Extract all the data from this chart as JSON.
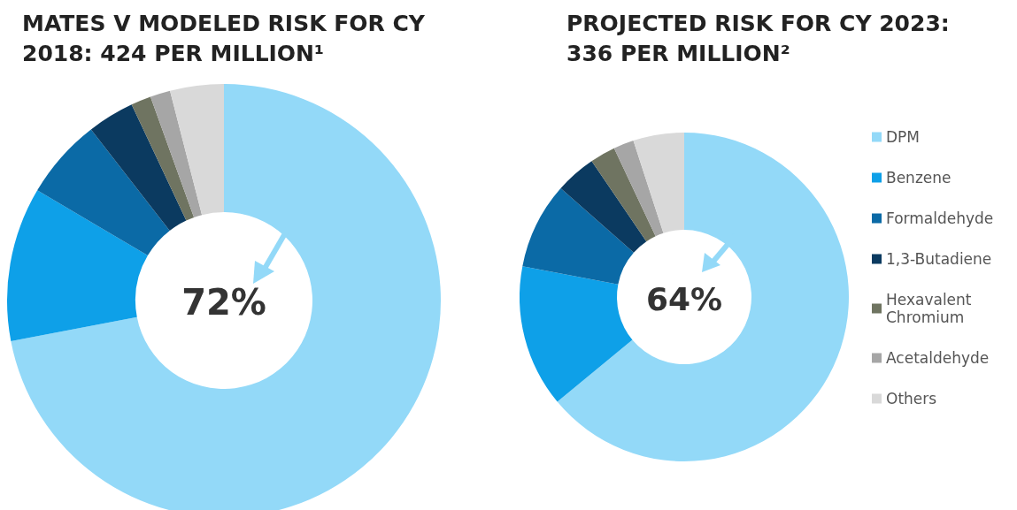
{
  "chart_data": [
    {
      "type": "donut",
      "title": "MATES V MODELED RISK FOR CY 2018: 424 PER MILLION¹",
      "categories": [
        null,
        null,
        null,
        null,
        null,
        null,
        null
      ],
      "values": [
        72,
        11.5,
        6,
        3.5,
        1.5,
        1.5,
        4
      ],
      "colors": [
        "#93d9f8",
        "#0ea0e8",
        "#0b6aa6",
        "#0b3a60",
        "#6f7461",
        "#a6a6a6",
        "#d9d9d9"
      ],
      "annotations": [
        "72%"
      ],
      "legend": false
    },
    {
      "type": "donut",
      "title": "PROJECTED RISK FOR CY 2023: 336 PER MILLION²",
      "categories": [
        "DPM",
        "Benzene",
        "Formaldehyde",
        "1,3-Butadiene",
        "Hexavalent Chromium",
        "Acetaldehyde",
        "Others"
      ],
      "values": [
        64,
        14,
        8.5,
        4,
        2.5,
        2,
        5
      ],
      "colors": [
        "#93d9f8",
        "#0ea0e8",
        "#0b6aa6",
        "#0b3a60",
        "#6f7461",
        "#a6a6a6",
        "#d9d9d9"
      ],
      "annotations": [
        "64%"
      ],
      "legend": "right"
    }
  ]
}
